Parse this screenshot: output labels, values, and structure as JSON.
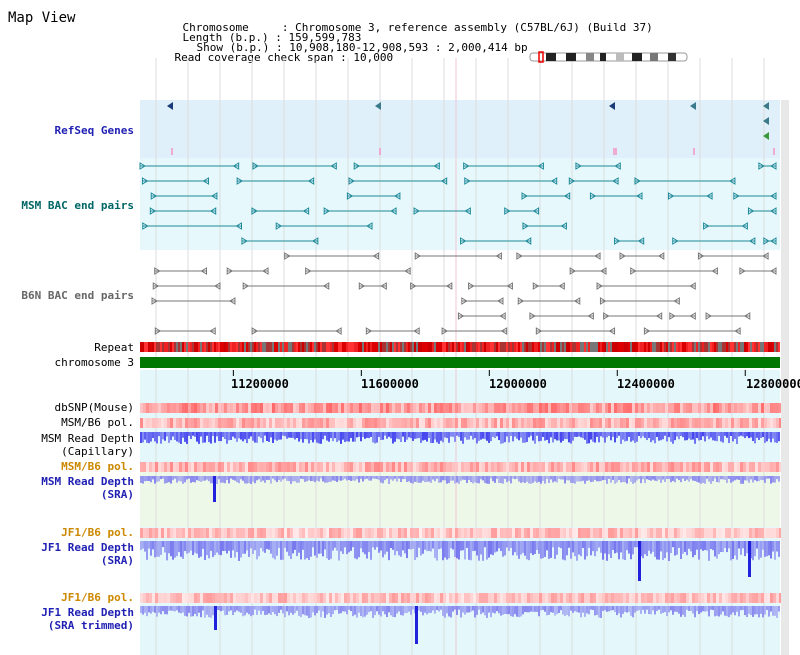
{
  "app": {
    "title": "Map View"
  },
  "info": {
    "chromosome_label": "Chromosome",
    "chromosome_value": "Chromosome 3, reference assembly (C57BL/6J) (Build 37)",
    "length_label": "Length (b.p.)",
    "length_value": "159,599,783",
    "show_label": "Show (b.p.)",
    "show_value": "10,908,180-12,908,593 : 2,000,414 bp",
    "coverage_label": "Read coverage check span",
    "coverage_value": "10,000"
  },
  "tracks": {
    "refseq": "RefSeq Genes",
    "msm_bac": "MSM BAC end pairs",
    "b6n_bac": "B6N BAC end pairs",
    "repeat": "Repeat",
    "chromosome": "chromosome 3",
    "dbsnp": "dbSNP(Mouse)",
    "msm_b6_pol_1": "MSM/B6 pol.",
    "msm_read_depth_cap_1": "MSM Read Depth",
    "msm_read_depth_cap_2": "(Capillary)",
    "msm_b6_pol_2": "MSM/B6 pol.",
    "msm_read_depth_sra_1": "MSM Read Depth",
    "msm_read_depth_sra_2": "(SRA)",
    "jf1_b6_pol_1": "JF1/B6 pol.",
    "jf1_read_depth_sra_1": "JF1 Read Depth",
    "jf1_read_depth_sra_2": "(SRA)",
    "jf1_b6_pol_2": "JF1/B6 pol.",
    "jf1_read_depth_trim_1": "JF1 Read Depth",
    "jf1_read_depth_trim_2": "(SRA trimmed)"
  },
  "axis": {
    "start": 10908180,
    "end": 12908593,
    "ticks": [
      "11200000",
      "11600000",
      "12000000",
      "12400000",
      "12800000"
    ],
    "tick_values": [
      11200000,
      11600000,
      12000000,
      12400000,
      12800000
    ]
  },
  "colors": {
    "refseq_label": "#1f1fb4",
    "msm_bac_label": "#006666",
    "b6n_bac_label": "#666666",
    "pol_label_orange": "#cc8800",
    "read_depth_label": "#1f1fb4",
    "chromosome_bar": "#007700",
    "refseq_bg": "#dff0fb",
    "msm_bg": "#e6f8fb",
    "read_depth_bar": "#3333ee"
  }
}
